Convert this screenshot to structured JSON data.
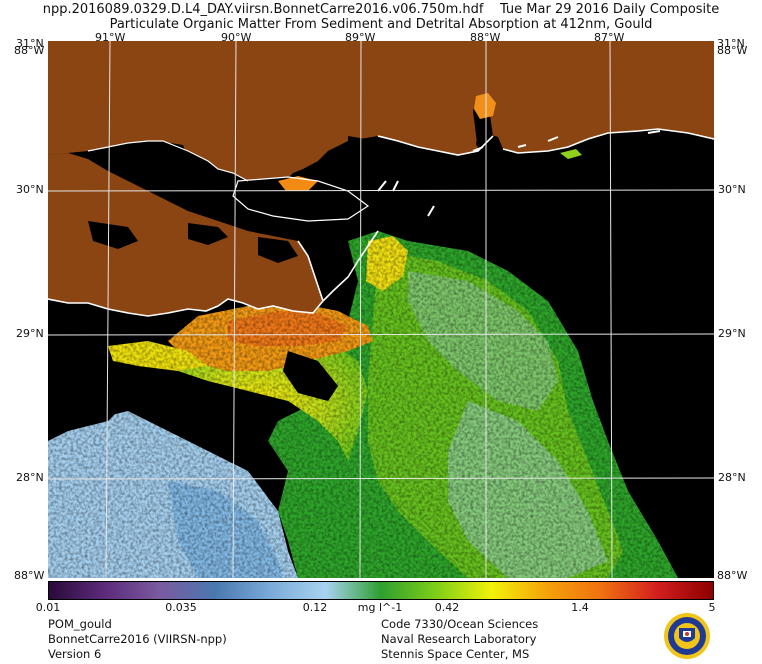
{
  "header": {
    "line1": "npp.2016089.0329.D.L4_DAY.viirsn.BonnetCarre2016.v06.750m.hdf    Tue Mar 29 2016 Daily Composite",
    "line2": "Particulate Organic Matter From Sediment and Detrital Absorption at 412nm, Gould"
  },
  "map": {
    "lon_labels": [
      "91°W",
      "90°W",
      "89°W",
      "88°W",
      "87°W"
    ],
    "lat_labels": [
      "30°N",
      "29°N",
      "28°N"
    ],
    "corner_top_left_lat": "31°N",
    "corner_top_left_edge": "88°W",
    "corner_top_right_lat": "31°N",
    "corner_top_right_edge": "88°W",
    "corner_bottom_left": "88°W",
    "corner_bottom_right": "88°W",
    "colors": {
      "land": "#8b4513",
      "no_data": "#000000",
      "coast": "#ffffff",
      "grid": "#e6e6e6"
    }
  },
  "colorbar": {
    "ticks": [
      "0.01",
      "0.035",
      "0.12",
      "0.42",
      "1.4",
      "5"
    ],
    "units": "mg l^-1",
    "stops": [
      "#2a0a3a",
      "#5b2a7a",
      "#7a5aa0",
      "#4a78b0",
      "#7aaad8",
      "#a8d2f0",
      "#2f9f2f",
      "#7ecf17",
      "#f2f20a",
      "#f5a20a",
      "#f07010",
      "#d21e1e",
      "#8c0000"
    ]
  },
  "footer": {
    "left": [
      "POM_gould",
      "BonnetCarre2016 (VIIRSN-npp)",
      "Version 6"
    ],
    "right": [
      "Code 7330/Ocean Sciences",
      "Naval Research Laboratory",
      "Stennis Space Center, MS"
    ]
  },
  "seal": {
    "icon": "nrl-seal-icon",
    "primary": "#1f3a93",
    "accent": "#f0c419"
  }
}
